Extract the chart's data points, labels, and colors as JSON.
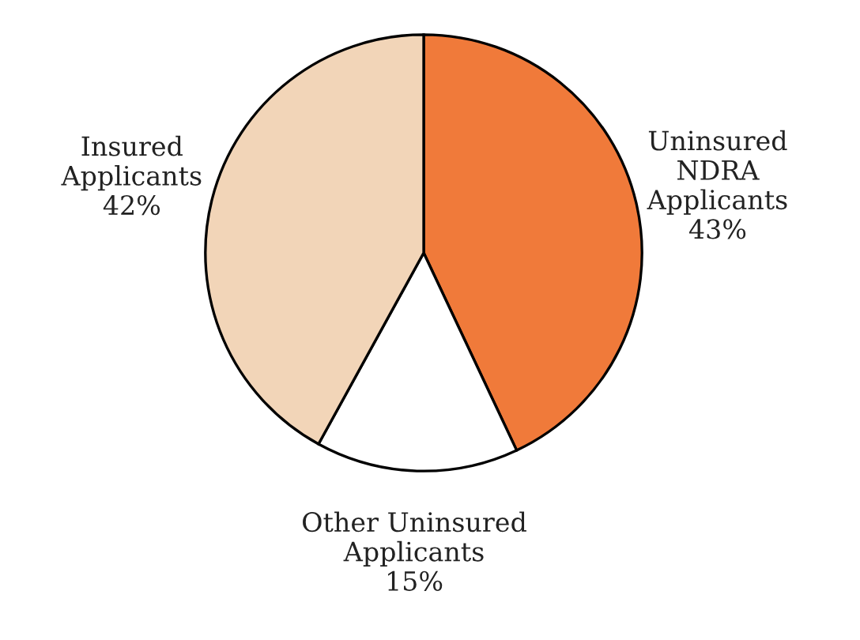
{
  "chart_data": {
    "type": "pie",
    "categories": [
      "Uninsured\nNDRA\nApplicants",
      "Other Uninsured\nApplicants",
      "Insured\nApplicants"
    ],
    "values": [
      43,
      15,
      42
    ],
    "value_labels": [
      "43%",
      "15%",
      "42%"
    ],
    "colors": [
      "#f07a3a",
      "#ffffff",
      "#f2d5b8"
    ]
  }
}
